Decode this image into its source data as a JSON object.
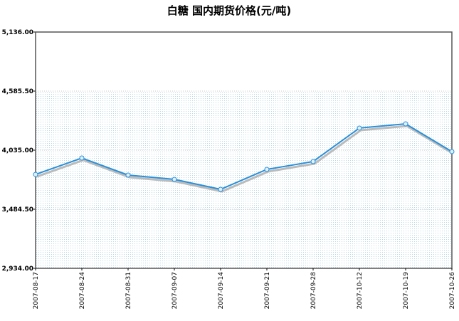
{
  "chart_data": {
    "type": "line",
    "title": "白糖  国内期货价格(元/吨)",
    "x": [
      "2007-08-17",
      "2007-08-24",
      "2007-08-31",
      "2007-09-07",
      "2007-09-14",
      "2007-09-21",
      "2007-09-28",
      "2007-10-12",
      "2007-10-19",
      "2007-10-26"
    ],
    "series": [
      {
        "color": "#2a8fd8",
        "values": [
          3809,
          3962,
          3803,
          3763,
          3670,
          3856,
          3929,
          4241,
          4280,
          4022
        ]
      }
    ],
    "ylim": [
      2934,
      5136
    ],
    "yticks": [
      {
        "value": 2934,
        "label": "2,934.00"
      },
      {
        "value": 3484.5,
        "label": "3,484.50"
      },
      {
        "value": 4035,
        "label": "4,035.00"
      },
      {
        "value": 4585.5,
        "label": "4,585.50"
      },
      {
        "value": 5136,
        "label": "5,136.00"
      }
    ],
    "grid": true
  }
}
